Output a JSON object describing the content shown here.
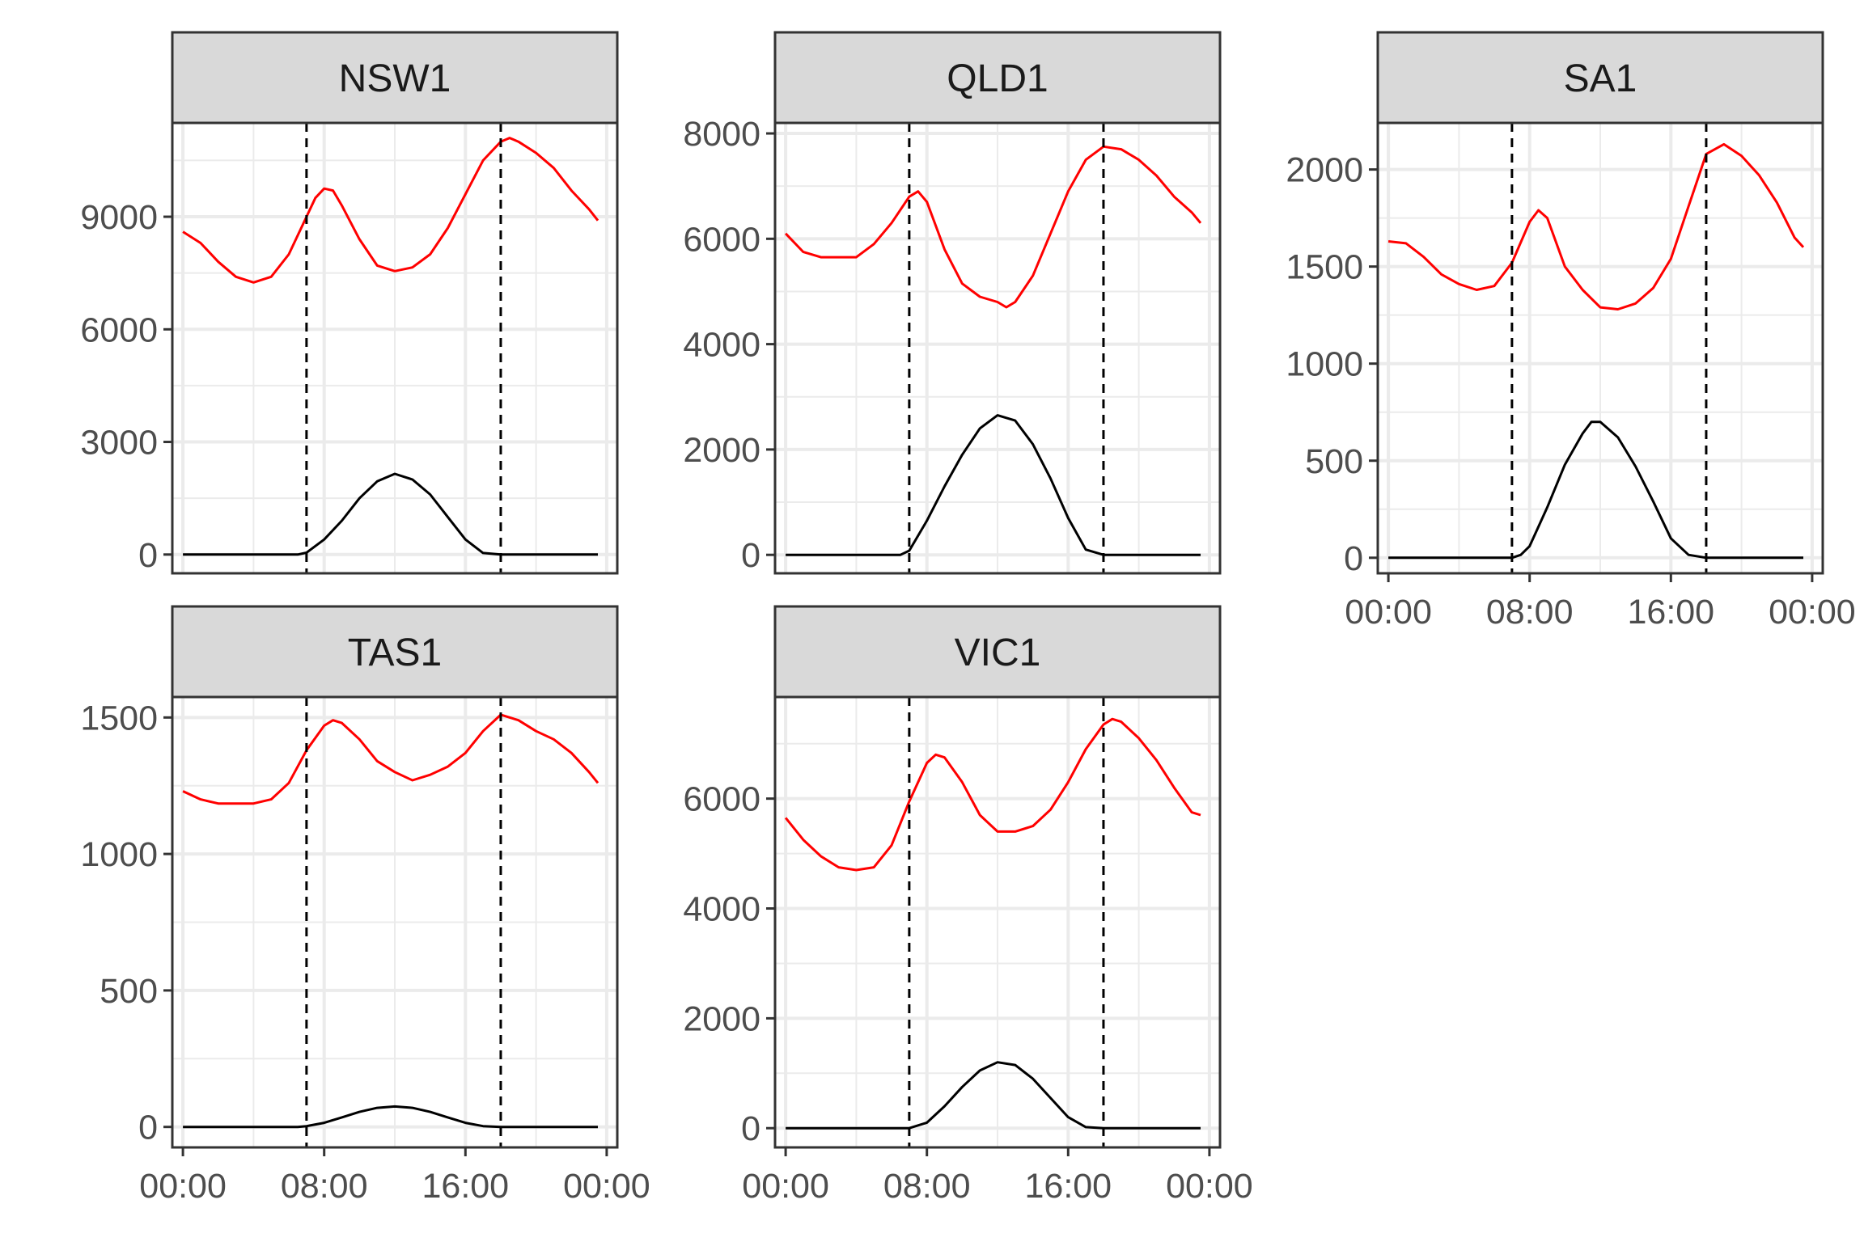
{
  "figure": {
    "colors": {
      "demand": "#ff0000",
      "solar": "#000000",
      "strip_fill": "#d9d9d9",
      "frame": "#333333",
      "grid_major": "#ebebeb",
      "vline": "#000000"
    }
  },
  "chart_data": [
    {
      "type": "line",
      "panel": "NSW1",
      "title": "NSW1",
      "x_unit": "hours since 00:00",
      "xlim": [
        -0.6,
        24.6
      ],
      "xticks": [
        0,
        8,
        16,
        24
      ],
      "xtick_labels": [
        "00:00",
        "08:00",
        "16:00",
        "00:00"
      ],
      "show_xaxis": false,
      "ylim": [
        -500,
        11500
      ],
      "yticks": [
        0,
        3000,
        6000,
        9000
      ],
      "ytick_labels": [
        "0",
        "3000",
        "6000",
        "9000"
      ],
      "vlines": [
        7,
        18
      ],
      "series": [
        {
          "key": "demand",
          "x": [
            0,
            1,
            2,
            3,
            4,
            5,
            6,
            7,
            7.5,
            8,
            8.5,
            9,
            10,
            11,
            12,
            13,
            14,
            15,
            16,
            17,
            18,
            18.5,
            19,
            20,
            21,
            22,
            23,
            23.5
          ],
          "values": [
            8600,
            8300,
            7800,
            7400,
            7250,
            7400,
            8000,
            9000,
            9500,
            9750,
            9700,
            9300,
            8400,
            7700,
            7550,
            7650,
            8000,
            8700,
            9600,
            10500,
            11000,
            11100,
            11000,
            10700,
            10300,
            9700,
            9200,
            8900
          ]
        },
        {
          "key": "solar",
          "x": [
            0,
            6.5,
            7,
            8,
            9,
            10,
            11,
            12,
            13,
            14,
            15,
            16,
            17,
            18,
            23.5
          ],
          "values": [
            0,
            0,
            50,
            400,
            900,
            1500,
            1950,
            2150,
            2000,
            1600,
            1000,
            400,
            40,
            0,
            0
          ]
        }
      ]
    },
    {
      "type": "line",
      "panel": "QLD1",
      "title": "QLD1",
      "x_unit": "hours since 00:00",
      "xlim": [
        -0.6,
        24.6
      ],
      "xticks": [
        0,
        8,
        16,
        24
      ],
      "xtick_labels": [
        "00:00",
        "08:00",
        "16:00",
        "00:00"
      ],
      "show_xaxis": false,
      "ylim": [
        -350,
        8200
      ],
      "yticks": [
        0,
        2000,
        4000,
        6000,
        8000
      ],
      "ytick_labels": [
        "0",
        "2000",
        "4000",
        "6000",
        "8000"
      ],
      "vlines": [
        7,
        18
      ],
      "series": [
        {
          "key": "demand",
          "x": [
            0,
            1,
            2,
            3,
            4,
            5,
            6,
            7,
            7.5,
            8,
            9,
            10,
            11,
            12,
            12.5,
            13,
            14,
            15,
            16,
            17,
            18,
            19,
            20,
            21,
            22,
            23,
            23.5
          ],
          "values": [
            6100,
            5750,
            5650,
            5650,
            5650,
            5900,
            6300,
            6800,
            6900,
            6700,
            5800,
            5150,
            4900,
            4800,
            4700,
            4800,
            5300,
            6100,
            6900,
            7500,
            7750,
            7700,
            7500,
            7200,
            6800,
            6500,
            6300
          ]
        },
        {
          "key": "solar",
          "x": [
            0,
            6.5,
            7,
            8,
            9,
            10,
            11,
            12,
            13,
            14,
            15,
            16,
            17,
            18,
            23.5
          ],
          "values": [
            0,
            0,
            80,
            650,
            1300,
            1900,
            2400,
            2650,
            2550,
            2100,
            1450,
            700,
            100,
            0,
            0
          ]
        }
      ]
    },
    {
      "type": "line",
      "panel": "SA1",
      "title": "SA1",
      "x_unit": "hours since 00:00",
      "xlim": [
        -0.6,
        24.6
      ],
      "xticks": [
        0,
        8,
        16,
        24
      ],
      "xtick_labels": [
        "00:00",
        "08:00",
        "16:00",
        "00:00"
      ],
      "show_xaxis": true,
      "ylim": [
        -80,
        2240
      ],
      "yticks": [
        0,
        500,
        1000,
        1500,
        2000
      ],
      "ytick_labels": [
        "0",
        "500",
        "1000",
        "1500",
        "2000"
      ],
      "vlines": [
        7,
        18
      ],
      "series": [
        {
          "key": "demand",
          "x": [
            0,
            1,
            2,
            3,
            4,
            5,
            6,
            7,
            8,
            8.5,
            9,
            10,
            11,
            12,
            13,
            14,
            15,
            16,
            17,
            18,
            19,
            20,
            21,
            22,
            23,
            23.5
          ],
          "values": [
            1630,
            1620,
            1550,
            1460,
            1410,
            1380,
            1400,
            1520,
            1730,
            1790,
            1750,
            1500,
            1380,
            1290,
            1280,
            1310,
            1390,
            1540,
            1810,
            2080,
            2130,
            2070,
            1970,
            1830,
            1650,
            1600
          ]
        },
        {
          "key": "solar",
          "x": [
            0,
            7,
            7.5,
            8,
            9,
            10,
            11,
            11.5,
            12,
            13,
            14,
            15,
            16,
            17,
            18,
            23.5
          ],
          "values": [
            0,
            0,
            15,
            60,
            260,
            480,
            640,
            700,
            700,
            620,
            470,
            290,
            100,
            15,
            0,
            0
          ]
        }
      ]
    },
    {
      "type": "line",
      "panel": "TAS1",
      "title": "TAS1",
      "x_unit": "hours since 00:00",
      "xlim": [
        -0.6,
        24.6
      ],
      "xticks": [
        0,
        8,
        16,
        24
      ],
      "xtick_labels": [
        "00:00",
        "08:00",
        "16:00",
        "00:00"
      ],
      "show_xaxis": true,
      "ylim": [
        -75,
        1575
      ],
      "yticks": [
        0,
        500,
        1000,
        1500
      ],
      "ytick_labels": [
        "0",
        "500",
        "1000",
        "1500"
      ],
      "vlines": [
        7,
        18
      ],
      "series": [
        {
          "key": "demand",
          "x": [
            0,
            1,
            2,
            3,
            4,
            5,
            6,
            7,
            8,
            8.5,
            9,
            10,
            11,
            12,
            13,
            14,
            15,
            16,
            17,
            18,
            19,
            20,
            21,
            22,
            23,
            23.5
          ],
          "values": [
            1230,
            1200,
            1185,
            1185,
            1185,
            1200,
            1260,
            1380,
            1470,
            1490,
            1480,
            1420,
            1340,
            1300,
            1270,
            1290,
            1320,
            1370,
            1450,
            1510,
            1490,
            1450,
            1420,
            1370,
            1300,
            1260
          ]
        },
        {
          "key": "solar",
          "x": [
            0,
            6.5,
            7,
            8,
            9,
            10,
            11,
            12,
            13,
            14,
            15,
            16,
            17,
            18,
            23.5
          ],
          "values": [
            0,
            0,
            3,
            15,
            35,
            55,
            70,
            75,
            70,
            55,
            35,
            15,
            3,
            0,
            0
          ]
        }
      ]
    },
    {
      "type": "line",
      "panel": "VIC1",
      "title": "VIC1",
      "x_unit": "hours since 00:00",
      "xlim": [
        -0.6,
        24.6
      ],
      "xticks": [
        0,
        8,
        16,
        24
      ],
      "xtick_labels": [
        "00:00",
        "08:00",
        "16:00",
        "00:00"
      ],
      "show_xaxis": true,
      "ylim": [
        -350,
        7850
      ],
      "yticks": [
        0,
        2000,
        4000,
        6000
      ],
      "ytick_labels": [
        "0",
        "2000",
        "4000",
        "6000"
      ],
      "vlines": [
        7,
        18
      ],
      "series": [
        {
          "key": "demand",
          "x": [
            0,
            1,
            2,
            3,
            4,
            5,
            6,
            7,
            8,
            8.5,
            9,
            10,
            11,
            12,
            13,
            14,
            15,
            16,
            17,
            18,
            18.5,
            19,
            20,
            21,
            22,
            23,
            23.5
          ],
          "values": [
            5650,
            5250,
            4950,
            4750,
            4700,
            4750,
            5150,
            5950,
            6650,
            6800,
            6750,
            6300,
            5700,
            5400,
            5400,
            5500,
            5800,
            6300,
            6900,
            7350,
            7450,
            7400,
            7100,
            6700,
            6200,
            5750,
            5700
          ]
        },
        {
          "key": "solar",
          "x": [
            0,
            7,
            8,
            9,
            10,
            11,
            12,
            13,
            14,
            15,
            16,
            17,
            18,
            23.5
          ],
          "values": [
            0,
            0,
            100,
            400,
            750,
            1050,
            1200,
            1150,
            900,
            550,
            200,
            20,
            0,
            0
          ]
        }
      ]
    }
  ]
}
